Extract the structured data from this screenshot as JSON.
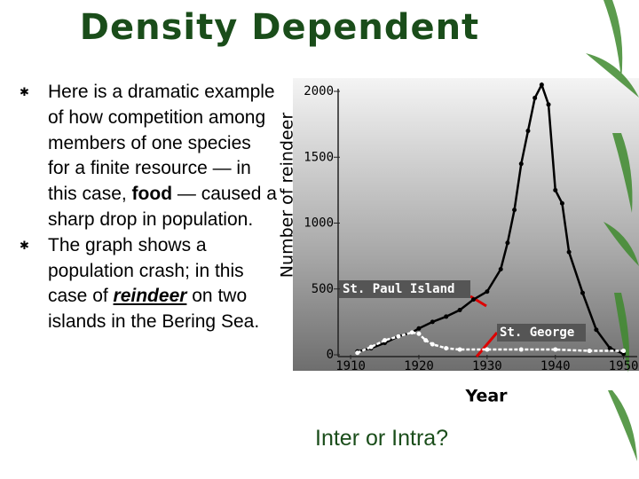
{
  "title": "Density Dependent",
  "bullets": [
    {
      "parts": [
        "Here is a dramatic example of how competition among members of one species for a finite resource — in this case, ",
        "food",
        " — caused a sharp drop in population."
      ]
    },
    {
      "parts": [
        "The graph shows a population crash; in this case of ",
        "reindeer",
        " on two islands in the Bering Sea."
      ]
    }
  ],
  "question": "Inter or Intra?",
  "chart_data": {
    "type": "line",
    "y_label": "Number of reindeer",
    "x_label": "Year",
    "xlim": [
      1907,
      1952
    ],
    "xticks": [
      1910,
      1920,
      1930,
      1940,
      1950
    ],
    "ylim": [
      0,
      2000
    ],
    "yticks": [
      0,
      500,
      1000,
      1500,
      2000
    ],
    "series": [
      {
        "name": "St. Paul Island",
        "color": "#000000",
        "x": [
          1911,
          1913,
          1915,
          1917,
          1919,
          1920,
          1922,
          1924,
          1926,
          1928,
          1930,
          1932,
          1933,
          1934,
          1935,
          1936,
          1937,
          1938,
          1939,
          1940,
          1941,
          1942,
          1944,
          1946,
          1948,
          1950
        ],
        "values": [
          25,
          50,
          90,
          140,
          170,
          200,
          250,
          290,
          340,
          420,
          480,
          650,
          850,
          1100,
          1450,
          1700,
          1950,
          2050,
          1900,
          1250,
          1150,
          780,
          470,
          190,
          50,
          8
        ]
      },
      {
        "name": "St. George",
        "color": "#ffffff",
        "x": [
          1911,
          1913,
          1915,
          1917,
          1919,
          1920,
          1921,
          1922,
          1924,
          1926,
          1930,
          1935,
          1940,
          1945,
          1950
        ],
        "values": [
          15,
          60,
          110,
          140,
          170,
          160,
          110,
          80,
          50,
          40,
          40,
          40,
          40,
          30,
          30
        ]
      }
    ]
  }
}
